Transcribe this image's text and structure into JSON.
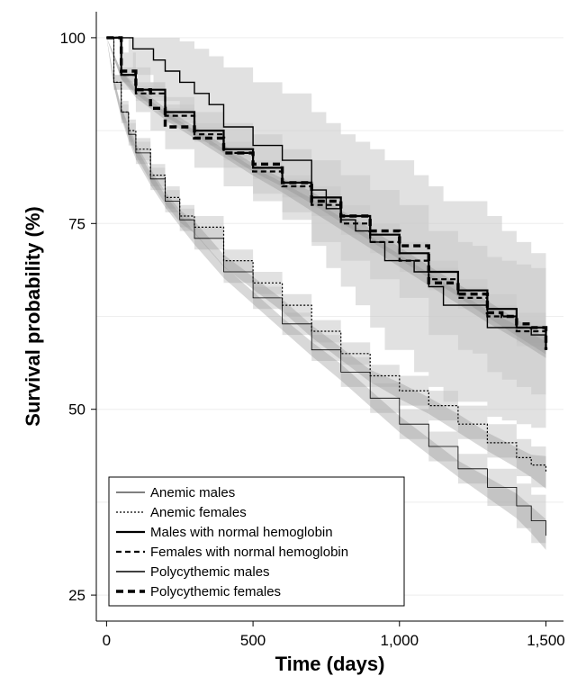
{
  "chart_data": {
    "type": "line",
    "title": "",
    "xlabel": "Time (days)",
    "ylabel": "Survival probability (%)",
    "xlim": [
      0,
      1500
    ],
    "ylim": [
      25,
      100
    ],
    "x_ticks": [
      0,
      500,
      1000,
      1500
    ],
    "x_tick_labels": [
      "0",
      "500",
      "1,000",
      "1,500"
    ],
    "y_ticks": [
      25,
      50,
      75,
      100
    ],
    "y_tick_labels": [
      "25",
      "50",
      "75",
      "100"
    ],
    "grid": true,
    "legend_position": "bottom-left",
    "band_colors": {
      "light": "#c8c8c8",
      "dark": "#8f8f8f"
    },
    "line_color": "#000000",
    "series": [
      {
        "name": "Anemic males",
        "style": "thin-solid",
        "x": [
          0,
          25,
          50,
          75,
          100,
          150,
          200,
          250,
          300,
          400,
          500,
          600,
          700,
          800,
          900,
          1000,
          1100,
          1200,
          1300,
          1400,
          1450,
          1500
        ],
        "y": [
          100,
          94,
          90,
          87,
          84.5,
          81,
          78,
          75.5,
          73,
          68.5,
          65,
          61.5,
          58,
          55,
          51.5,
          48,
          45,
          42,
          39.5,
          37,
          35,
          33
        ],
        "ci_lower": [
          100,
          93,
          88.5,
          85.5,
          83,
          79.5,
          76.5,
          74,
          71.5,
          67,
          63.5,
          60,
          56.5,
          53,
          49.5,
          46,
          43,
          40,
          37,
          34,
          32,
          29.5
        ],
        "ci_upper": [
          100,
          95,
          91.5,
          88.5,
          86,
          82.5,
          79.5,
          77,
          74.5,
          70,
          66.5,
          63,
          60,
          57,
          53.5,
          50,
          47,
          44,
          42,
          40,
          38.5,
          37
        ]
      },
      {
        "name": "Anemic females",
        "style": "dotted",
        "x": [
          0,
          25,
          50,
          75,
          100,
          150,
          200,
          250,
          300,
          400,
          500,
          600,
          700,
          800,
          900,
          1000,
          1100,
          1200,
          1300,
          1400,
          1450,
          1500
        ],
        "y": [
          100,
          94,
          90,
          87.5,
          85,
          81.5,
          78.5,
          76,
          74.5,
          70,
          67,
          64,
          60.5,
          57.5,
          54.5,
          52.5,
          50.5,
          48,
          45.5,
          43.5,
          42.5,
          41.5
        ],
        "ci_lower": [
          100,
          93,
          89,
          86,
          83.5,
          80,
          77,
          74.5,
          73,
          68.5,
          65.5,
          62.5,
          59,
          56,
          53,
          50.5,
          48.5,
          46,
          43.5,
          41,
          39.5,
          37.5
        ],
        "ci_upper": [
          100,
          95,
          91,
          89,
          86.5,
          83,
          80,
          77.5,
          76,
          71.5,
          68.5,
          65.5,
          62,
          59,
          56,
          54.5,
          52.5,
          50.5,
          48,
          46,
          45,
          45.5
        ]
      },
      {
        "name": "Males with normal hemoglobin",
        "style": "solid",
        "x": [
          0,
          50,
          100,
          200,
          300,
          400,
          500,
          600,
          700,
          800,
          900,
          1000,
          1100,
          1200,
          1300,
          1400,
          1500
        ],
        "y": [
          100,
          95,
          93,
          90,
          87.5,
          85,
          82.5,
          80.5,
          78.5,
          76,
          73.5,
          71,
          68.5,
          66,
          63.5,
          61,
          58.5
        ],
        "ci_lower": [
          100,
          94,
          92,
          89,
          86.5,
          84,
          81.5,
          79.5,
          77,
          74.5,
          72,
          69.5,
          67,
          64.5,
          61.5,
          59,
          56.5
        ],
        "ci_upper": [
          100,
          96,
          94,
          91,
          88.5,
          86,
          83.5,
          81.5,
          80,
          77.5,
          75,
          72.5,
          70,
          67.5,
          65.5,
          63,
          60.5
        ]
      },
      {
        "name": "Females with normal hemoglobin",
        "style": "dashed",
        "x": [
          0,
          50,
          100,
          200,
          300,
          400,
          500,
          600,
          700,
          800,
          900,
          1000,
          1100,
          1200,
          1300,
          1400,
          1500
        ],
        "y": [
          100,
          95,
          92.5,
          89.5,
          87,
          84.5,
          82,
          80,
          77.5,
          75,
          72.5,
          70,
          67.5,
          65,
          62.5,
          60.5,
          58
        ],
        "ci_lower": [
          100,
          94,
          91.5,
          88.5,
          86,
          83.5,
          81,
          78.5,
          76,
          73.5,
          71,
          68.5,
          66,
          63.5,
          61,
          58.5,
          56
        ],
        "ci_upper": [
          100,
          96,
          93.5,
          90.5,
          88,
          85.5,
          83,
          81,
          79,
          76.5,
          74,
          71.5,
          69,
          66.5,
          64,
          62,
          60
        ]
      },
      {
        "name": "Polycythemic males",
        "style": "thin-step",
        "x": [
          0,
          75,
          90,
          160,
          200,
          250,
          300,
          350,
          400,
          500,
          600,
          700,
          750,
          800,
          850,
          900,
          950,
          1050,
          1100,
          1150,
          1300,
          1350,
          1400,
          1450,
          1500
        ],
        "y": [
          100,
          100,
          98.5,
          97,
          95.5,
          94,
          92.5,
          91,
          88,
          85.5,
          83.5,
          79.5,
          77,
          75.5,
          74,
          72.5,
          70,
          68.5,
          66.5,
          64,
          61,
          61,
          61,
          60,
          59
        ],
        "ci_lower": [
          100,
          98,
          95,
          93,
          91.5,
          89.5,
          87.5,
          85.5,
          82.5,
          79,
          76.5,
          72,
          69,
          66.5,
          64,
          61,
          58,
          55,
          53,
          51,
          49,
          48.5,
          48,
          47.5,
          47
        ],
        "ci_upper": [
          100,
          100,
          100,
          100,
          100,
          99.5,
          98.5,
          97.5,
          96,
          94,
          92.5,
          90,
          88.5,
          87,
          86,
          85,
          83.5,
          81.5,
          80,
          78,
          76,
          74,
          72.5,
          71,
          70.5
        ]
      },
      {
        "name": "Polycythemic females",
        "style": "thick-dashed",
        "x": [
          0,
          50,
          100,
          150,
          200,
          300,
          400,
          500,
          600,
          700,
          800,
          900,
          1000,
          1100,
          1200,
          1250,
          1300,
          1350,
          1400,
          1450,
          1500
        ],
        "y": [
          100,
          95.5,
          93,
          90.5,
          88,
          86.5,
          84.5,
          83,
          80.5,
          78,
          76,
          74,
          72,
          67,
          65.5,
          65.5,
          63,
          62.5,
          61.5,
          61,
          58
        ],
        "ci_lower": [
          100,
          93,
          90,
          87.5,
          85,
          82.5,
          80,
          78,
          75.5,
          72.5,
          70,
          67.5,
          65,
          60,
          58,
          57.5,
          55,
          54,
          53,
          52,
          51
        ],
        "ci_upper": [
          100,
          98,
          96,
          94,
          92,
          90,
          88.5,
          87,
          85,
          83.5,
          81.5,
          79.5,
          77.5,
          74,
          72.5,
          72,
          70.5,
          70,
          69.5,
          69,
          67
        ]
      }
    ]
  }
}
